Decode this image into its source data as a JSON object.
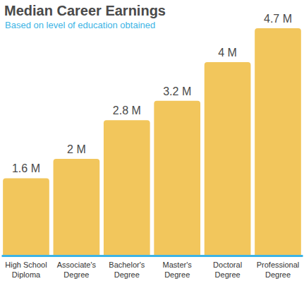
{
  "chart_data": {
    "type": "bar",
    "title": "Median Career Earnings",
    "subtitle": "Based on level of education obtained",
    "categories": [
      "High School Diploma",
      "Associate's Degree",
      "Bachelor's Degree",
      "Master's Degree",
      "Doctoral Degree",
      "Professional Degree"
    ],
    "values": [
      1.6,
      2,
      2.8,
      3.2,
      4,
      4.7
    ],
    "value_labels": [
      "1.6 M",
      "2 M",
      "2.8 M",
      "3.2 M",
      "4 M",
      "4.7 M"
    ],
    "color": "#f2c65c",
    "ylim": [
      0,
      4.7
    ],
    "data_labels": true,
    "tick_labels": "x",
    "grid": false
  }
}
